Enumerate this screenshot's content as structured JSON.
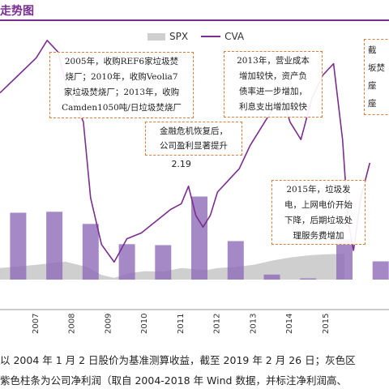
{
  "title": "走势图",
  "chart_data": {
    "type": "area",
    "legend": [
      "SPX",
      "CVA"
    ],
    "legend_position": "top-center",
    "x_ticks": [
      "2007",
      "2008",
      "2009",
      "2010",
      "2011",
      "2012",
      "2013",
      "2014",
      "2015"
    ],
    "series": [
      {
        "name": "SPX",
        "type": "area",
        "color": "#cfcfcf",
        "values": [
          [
            2006.0,
            1.05
          ],
          [
            2007.0,
            1.2
          ],
          [
            2007.8,
            1.35
          ],
          [
            2008.4,
            1.1
          ],
          [
            2008.8,
            0.72
          ],
          [
            2009.15,
            0.58
          ],
          [
            2009.6,
            0.82
          ],
          [
            2010.0,
            0.9
          ],
          [
            2010.5,
            0.88
          ],
          [
            2011.0,
            1.05
          ],
          [
            2011.7,
            0.95
          ],
          [
            2012.0,
            1.05
          ],
          [
            2012.5,
            1.1
          ],
          [
            2013.0,
            1.2
          ],
          [
            2013.5,
            1.4
          ],
          [
            2014.0,
            1.55
          ],
          [
            2014.5,
            1.65
          ],
          [
            2015.0,
            1.7
          ],
          [
            2015.5,
            1.72
          ]
        ]
      },
      {
        "name": "CVA",
        "type": "line",
        "color": "#7a2e8f",
        "values": [
          [
            2006.0,
            4.4
          ],
          [
            2006.5,
            4.7
          ],
          [
            2007.0,
            5.0
          ],
          [
            2007.3,
            5.3
          ],
          [
            2007.6,
            5.1
          ],
          [
            2007.8,
            4.6
          ],
          [
            2008.1,
            4.2
          ],
          [
            2008.3,
            3.9
          ],
          [
            2008.5,
            2.6
          ],
          [
            2008.8,
            1.8
          ],
          [
            2009.15,
            1.5
          ],
          [
            2009.5,
            1.9
          ],
          [
            2009.9,
            2.0
          ],
          [
            2010.3,
            2.2
          ],
          [
            2010.7,
            2.4
          ],
          [
            2011.0,
            2.5
          ],
          [
            2011.2,
            2.8
          ],
          [
            2011.4,
            2.3
          ],
          [
            2011.6,
            2.1
          ],
          [
            2011.8,
            2.3
          ],
          [
            2012.0,
            2.7
          ],
          [
            2012.3,
            2.9
          ],
          [
            2012.6,
            3.1
          ],
          [
            2012.9,
            3.5
          ],
          [
            2013.2,
            3.8
          ],
          [
            2013.5,
            4.1
          ],
          [
            2013.8,
            4.3
          ],
          [
            2014.0,
            3.9
          ],
          [
            2014.3,
            3.6
          ],
          [
            2014.6,
            4.3
          ],
          [
            2014.9,
            4.7
          ],
          [
            2015.2,
            4.9
          ],
          [
            2015.45,
            3.6
          ],
          [
            2015.6,
            2.2
          ],
          [
            2015.75,
            1.7
          ],
          [
            2015.95,
            2.6
          ],
          [
            2016.2,
            3.2
          ]
        ]
      },
      {
        "name": "净利润",
        "type": "bar",
        "color": "#8e6bb8",
        "values": [
          [
            2006.5,
            3.3
          ],
          [
            2007.5,
            3.35
          ],
          [
            2008.5,
            2.75
          ],
          [
            2009.5,
            1.75
          ],
          [
            2010.5,
            1.7
          ],
          [
            2011.5,
            4.1
          ],
          [
            2012.5,
            1.9
          ],
          [
            2013.5,
            0.25
          ],
          [
            2014.5,
            0.06
          ],
          [
            2015.5,
            2.0
          ],
          [
            2016.5,
            0.9
          ]
        ]
      }
    ],
    "annotations": [
      {
        "id": "a2005",
        "text": "2005年，收购REF6家垃圾焚\n烧厂；2010年，收购Veolia7\n家垃圾焚烧厂；2013年，收购\nCamden1050吨/日垃圾焚烧厂"
      },
      {
        "id": "a2013",
        "text": "2013年，营业成本\n增加较快，资产负\n债率进一步增加，\n利息支出增加较快"
      },
      {
        "id": "acut",
        "text": "截\n坂焚\n座\n座"
      },
      {
        "id": "acrisis",
        "text": "金融危机恢复后，\n公司盈利显著提升"
      },
      {
        "id": "a2015",
        "text": "2015年，垃圾发\n电，上网电价开始\n下降，后期垃圾处\n理服务费增加"
      }
    ],
    "value_labels": [
      "2.19"
    ]
  },
  "footnote": {
    "line1": "以 2004 年 1 月 2 日股价为基准测算收益，截至 2019 年 2 月 26 日；灰色区",
    "line2": "紫色柱条为公司净利润（取自 2004-2018 年 Wind 数据，并标注净利润高、"
  }
}
